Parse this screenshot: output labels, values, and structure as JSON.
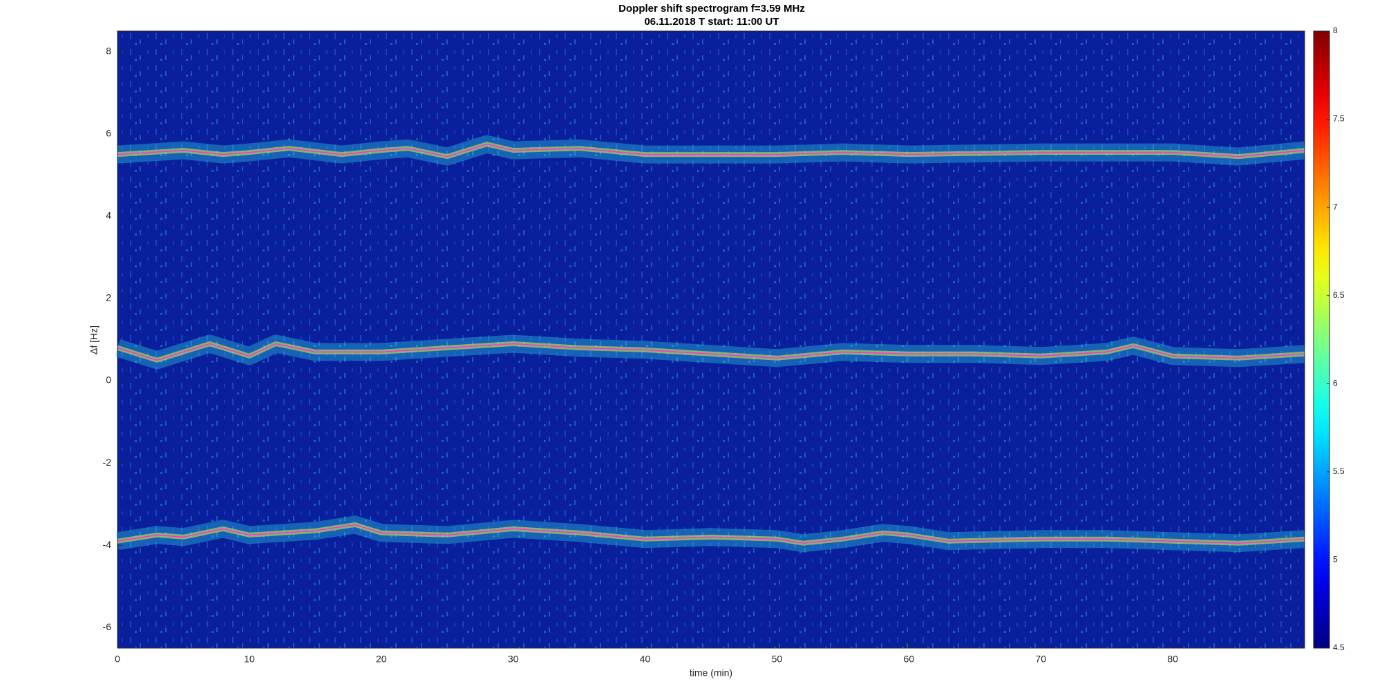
{
  "chart_data": {
    "type": "spectrogram",
    "title": "Doppler shift spectrogram f=3.59 MHz",
    "subtitle": "06.11.2018   T start: 11:00 UT",
    "xlabel": "time (min)",
    "ylabel": "Δf [Hz]",
    "xlim": [
      0,
      90
    ],
    "xticks": [
      0,
      10,
      20,
      30,
      40,
      50,
      60,
      70,
      80
    ],
    "ylim": [
      -6.5,
      8.5
    ],
    "yticks": [
      -6,
      -4,
      -2,
      0,
      2,
      4,
      6,
      8
    ],
    "colormap": "jet",
    "clim": [
      4.5,
      8
    ],
    "cticks": [
      4.5,
      5,
      5.5,
      6,
      6.5,
      7,
      7.5,
      8
    ],
    "background_color": "#0a1f9c",
    "series": [
      {
        "color": "#ff33cc",
        "x": [
          0,
          5,
          8,
          10,
          13,
          17,
          20,
          22,
          25,
          28,
          30,
          35,
          40,
          50,
          55,
          60,
          70,
          80,
          85,
          90
        ],
        "values": [
          5.5,
          5.6,
          5.5,
          5.55,
          5.65,
          5.5,
          5.6,
          5.65,
          5.45,
          5.75,
          5.6,
          5.65,
          5.5,
          5.5,
          5.55,
          5.5,
          5.55,
          5.55,
          5.45,
          5.6
        ]
      },
      {
        "color": "#ff33cc",
        "x": [
          0,
          3,
          5,
          7,
          9,
          10,
          12,
          15,
          20,
          25,
          30,
          35,
          40,
          45,
          50,
          55,
          60,
          65,
          70,
          75,
          77,
          80,
          85,
          90
        ],
        "values": [
          0.8,
          0.5,
          0.7,
          0.9,
          0.7,
          0.6,
          0.9,
          0.7,
          0.7,
          0.8,
          0.9,
          0.8,
          0.75,
          0.65,
          0.55,
          0.7,
          0.65,
          0.65,
          0.6,
          0.7,
          0.85,
          0.6,
          0.55,
          0.65
        ]
      },
      {
        "color": "#ff33cc",
        "x": [
          0,
          3,
          5,
          8,
          10,
          15,
          18,
          20,
          25,
          30,
          35,
          40,
          45,
          50,
          52,
          55,
          58,
          60,
          63,
          70,
          75,
          80,
          85,
          90
        ],
        "values": [
          -3.9,
          -3.75,
          -3.8,
          -3.6,
          -3.75,
          -3.65,
          -3.5,
          -3.7,
          -3.75,
          -3.6,
          -3.7,
          -3.85,
          -3.8,
          -3.85,
          -3.95,
          -3.85,
          -3.7,
          -3.75,
          -3.9,
          -3.85,
          -3.85,
          -3.9,
          -3.95,
          -3.85
        ]
      }
    ]
  }
}
